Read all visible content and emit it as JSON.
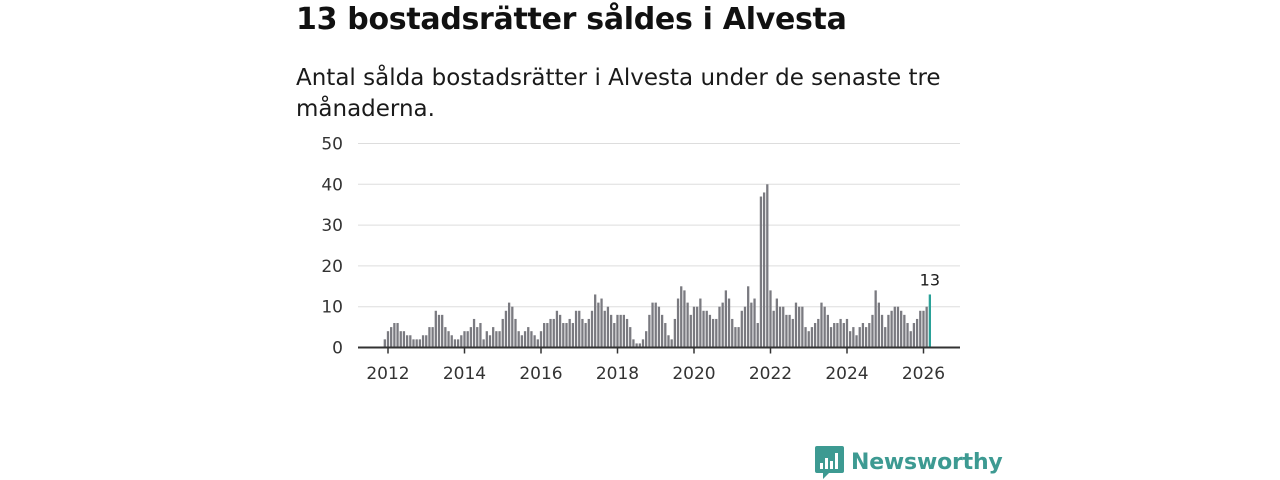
{
  "header": {
    "title": "13 bostadsrätter såldes i Alvesta",
    "subtitle": "Antal sålda bostadsrätter i Alvesta under de senaste tre månaderna."
  },
  "brand": {
    "name": "Newsworthy",
    "icon": "newsworthy-logo-icon",
    "color": "#3d9a92"
  },
  "colors": {
    "bar": "#7a7a80",
    "highlight": "#2aa198",
    "grid": "#dddddd",
    "axis": "#333333"
  },
  "chart_data": {
    "type": "bar",
    "title": "13 bostadsrätter såldes i Alvesta",
    "xlabel": "",
    "ylabel": "",
    "x_start": 2011.9167,
    "x_step": 0.08333,
    "xlim": [
      2011.5,
      2026.9
    ],
    "ylim": [
      0,
      50
    ],
    "yticks": [
      0,
      10,
      20,
      30,
      40,
      50
    ],
    "xticks": [
      2012,
      2014,
      2016,
      2018,
      2020,
      2022,
      2024,
      2026
    ],
    "grid": true,
    "values": [
      2,
      4,
      5,
      6,
      6,
      4,
      4,
      3,
      3,
      2,
      2,
      2,
      3,
      3,
      5,
      5,
      9,
      8,
      8,
      5,
      4,
      3,
      2,
      2,
      3,
      4,
      4,
      5,
      7,
      5,
      6,
      2,
      4,
      3,
      5,
      4,
      4,
      7,
      9,
      11,
      10,
      7,
      4,
      3,
      4,
      5,
      4,
      3,
      2,
      4,
      6,
      6,
      7,
      7,
      9,
      8,
      6,
      6,
      7,
      6,
      9,
      9,
      7,
      6,
      7,
      9,
      13,
      11,
      12,
      9,
      10,
      8,
      6,
      8,
      8,
      8,
      7,
      5,
      2,
      1,
      1,
      2,
      4,
      8,
      11,
      11,
      10,
      8,
      6,
      3,
      2,
      7,
      12,
      15,
      14,
      11,
      8,
      10,
      10,
      12,
      9,
      9,
      8,
      7,
      7,
      10,
      11,
      14,
      12,
      7,
      5,
      5,
      9,
      10,
      15,
      11,
      12,
      6,
      37,
      38,
      40,
      14,
      9,
      12,
      10,
      10,
      8,
      8,
      7,
      11,
      10,
      10,
      5,
      4,
      5,
      6,
      7,
      11,
      10,
      8,
      5,
      6,
      6,
      7,
      6,
      7,
      4,
      5,
      3,
      5,
      6,
      5,
      6,
      8,
      14,
      11,
      8,
      5,
      8,
      9,
      10,
      10,
      9,
      8,
      6,
      4,
      6,
      7,
      9,
      9,
      10,
      13
    ],
    "highlight_index": 171,
    "highlight_label": "13"
  }
}
